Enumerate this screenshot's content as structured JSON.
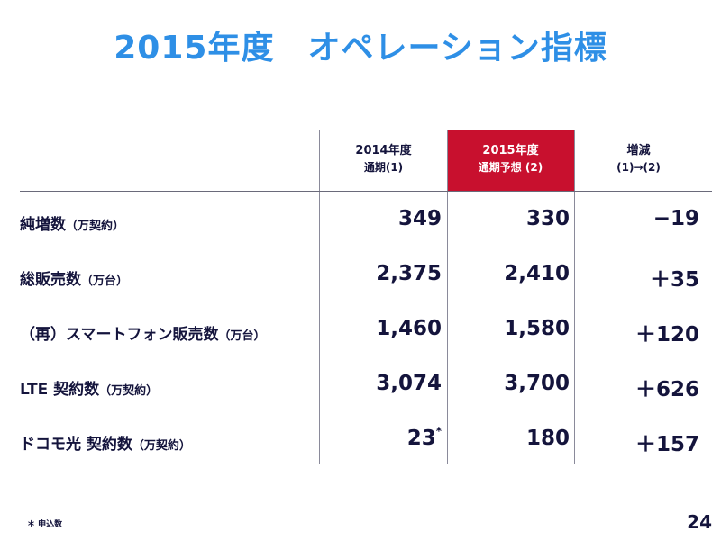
{
  "title": "2015年度　オペレーション指標",
  "columns": [
    {
      "line1": "2014年度",
      "line2": "通期(1)"
    },
    {
      "line1": "2015年度",
      "line2": "通期予想 (2)"
    },
    {
      "line1": "増減",
      "line2": "(1)→(2)"
    }
  ],
  "rows": [
    {
      "label": "純増数",
      "unit": "（万契約）",
      "v2014": "349",
      "v2015": "330",
      "diff": "−19"
    },
    {
      "label": "総販売数",
      "unit": "（万台）",
      "v2014": "2,375",
      "v2015": "2,410",
      "diff": "＋35"
    },
    {
      "label": "（再）スマートフォン販売数",
      "unit": "（万台）",
      "v2014": "1,460",
      "v2015": "1,580",
      "diff": "＋120"
    },
    {
      "label": "LTE 契約数",
      "unit": "（万契約）",
      "v2014": "3,074",
      "v2015": "3,700",
      "diff": "＋626"
    },
    {
      "label": "ドコモ光 契約数",
      "unit": "（万契約）",
      "v2014": "23",
      "v2014_mark": "*",
      "v2015": "180",
      "diff": "＋157"
    }
  ],
  "footnote": "＊ 申込数",
  "page_number": "24",
  "colors": {
    "title": "#2e8fe6",
    "highlight": "#c8102e",
    "text": "#14143c"
  }
}
